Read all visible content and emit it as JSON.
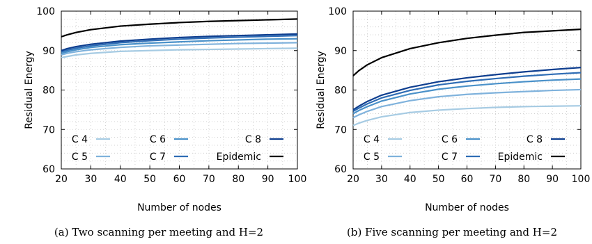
{
  "chart_data": [
    {
      "type": "line",
      "caption": "(a) Two scanning per meeting and H=2",
      "xlabel": "Number of nodes",
      "ylabel": "Residual Energy",
      "xlim": [
        20,
        100
      ],
      "ylim": [
        60,
        100
      ],
      "xticks": [
        20,
        30,
        40,
        50,
        60,
        70,
        80,
        90,
        100
      ],
      "yticks": [
        60,
        70,
        80,
        90,
        100
      ],
      "grid": true,
      "legend_placement": "bottom",
      "x": [
        20,
        22,
        25,
        30,
        40,
        50,
        60,
        70,
        80,
        90,
        100
      ],
      "series": [
        {
          "name": "C 4",
          "color": "#a6cbe3",
          "values": [
            88.2,
            88.5,
            88.9,
            89.3,
            89.8,
            90.0,
            90.2,
            90.3,
            90.4,
            90.5,
            90.6
          ]
        },
        {
          "name": "C 5",
          "color": "#7fb2dc",
          "values": [
            88.9,
            89.3,
            89.7,
            90.2,
            90.8,
            91.2,
            91.4,
            91.6,
            91.8,
            91.9,
            92.0
          ]
        },
        {
          "name": "C 6",
          "color": "#4a91c9",
          "values": [
            89.3,
            89.7,
            90.2,
            90.8,
            91.5,
            91.9,
            92.2,
            92.5,
            92.7,
            92.9,
            93.0
          ]
        },
        {
          "name": "C 7",
          "color": "#2f6db5",
          "values": [
            89.7,
            90.1,
            90.6,
            91.2,
            92.0,
            92.5,
            92.9,
            93.2,
            93.4,
            93.6,
            93.8
          ]
        },
        {
          "name": "C 8",
          "color": "#0e3e8f",
          "values": [
            90.0,
            90.5,
            91.0,
            91.6,
            92.4,
            92.9,
            93.3,
            93.6,
            93.8,
            94.0,
            94.2
          ]
        },
        {
          "name": "Epidemic",
          "color": "#000000",
          "values": [
            93.5,
            94.0,
            94.6,
            95.3,
            96.2,
            96.7,
            97.1,
            97.4,
            97.6,
            97.8,
            98.0
          ]
        }
      ]
    },
    {
      "type": "line",
      "caption": "(b) Five scanning per meeting and H=2",
      "xlabel": "Number of nodes",
      "ylabel": "Residual Energy",
      "xlim": [
        20,
        100
      ],
      "ylim": [
        60,
        100
      ],
      "xticks": [
        20,
        30,
        40,
        50,
        60,
        70,
        80,
        90,
        100
      ],
      "yticks": [
        60,
        70,
        80,
        90,
        100
      ],
      "grid": true,
      "legend_placement": "bottom",
      "x": [
        20,
        22,
        25,
        30,
        40,
        50,
        60,
        70,
        80,
        90,
        100
      ],
      "series": [
        {
          "name": "C 4",
          "color": "#a6cbe3",
          "values": [
            71.0,
            71.6,
            72.3,
            73.2,
            74.3,
            74.9,
            75.3,
            75.6,
            75.8,
            75.9,
            76.0
          ]
        },
        {
          "name": "C 5",
          "color": "#7fb2dc",
          "values": [
            73.0,
            73.7,
            74.6,
            75.8,
            77.3,
            78.3,
            78.9,
            79.3,
            79.6,
            79.9,
            80.1
          ]
        },
        {
          "name": "C 6",
          "color": "#4a91c9",
          "values": [
            74.0,
            74.8,
            75.8,
            77.2,
            79.0,
            80.2,
            81.0,
            81.6,
            82.1,
            82.5,
            82.8
          ]
        },
        {
          "name": "C 7",
          "color": "#2f6db5",
          "values": [
            74.6,
            75.4,
            76.5,
            78.0,
            79.9,
            81.3,
            82.2,
            82.9,
            83.5,
            84.0,
            84.4
          ]
        },
        {
          "name": "C 8",
          "color": "#0e3e8f",
          "values": [
            75.0,
            75.9,
            77.1,
            78.7,
            80.7,
            82.1,
            83.1,
            83.9,
            84.6,
            85.2,
            85.7
          ]
        },
        {
          "name": "Epidemic",
          "color": "#000000",
          "values": [
            83.6,
            84.9,
            86.4,
            88.2,
            90.5,
            92.0,
            93.1,
            93.9,
            94.6,
            95.0,
            95.4
          ]
        }
      ]
    }
  ]
}
